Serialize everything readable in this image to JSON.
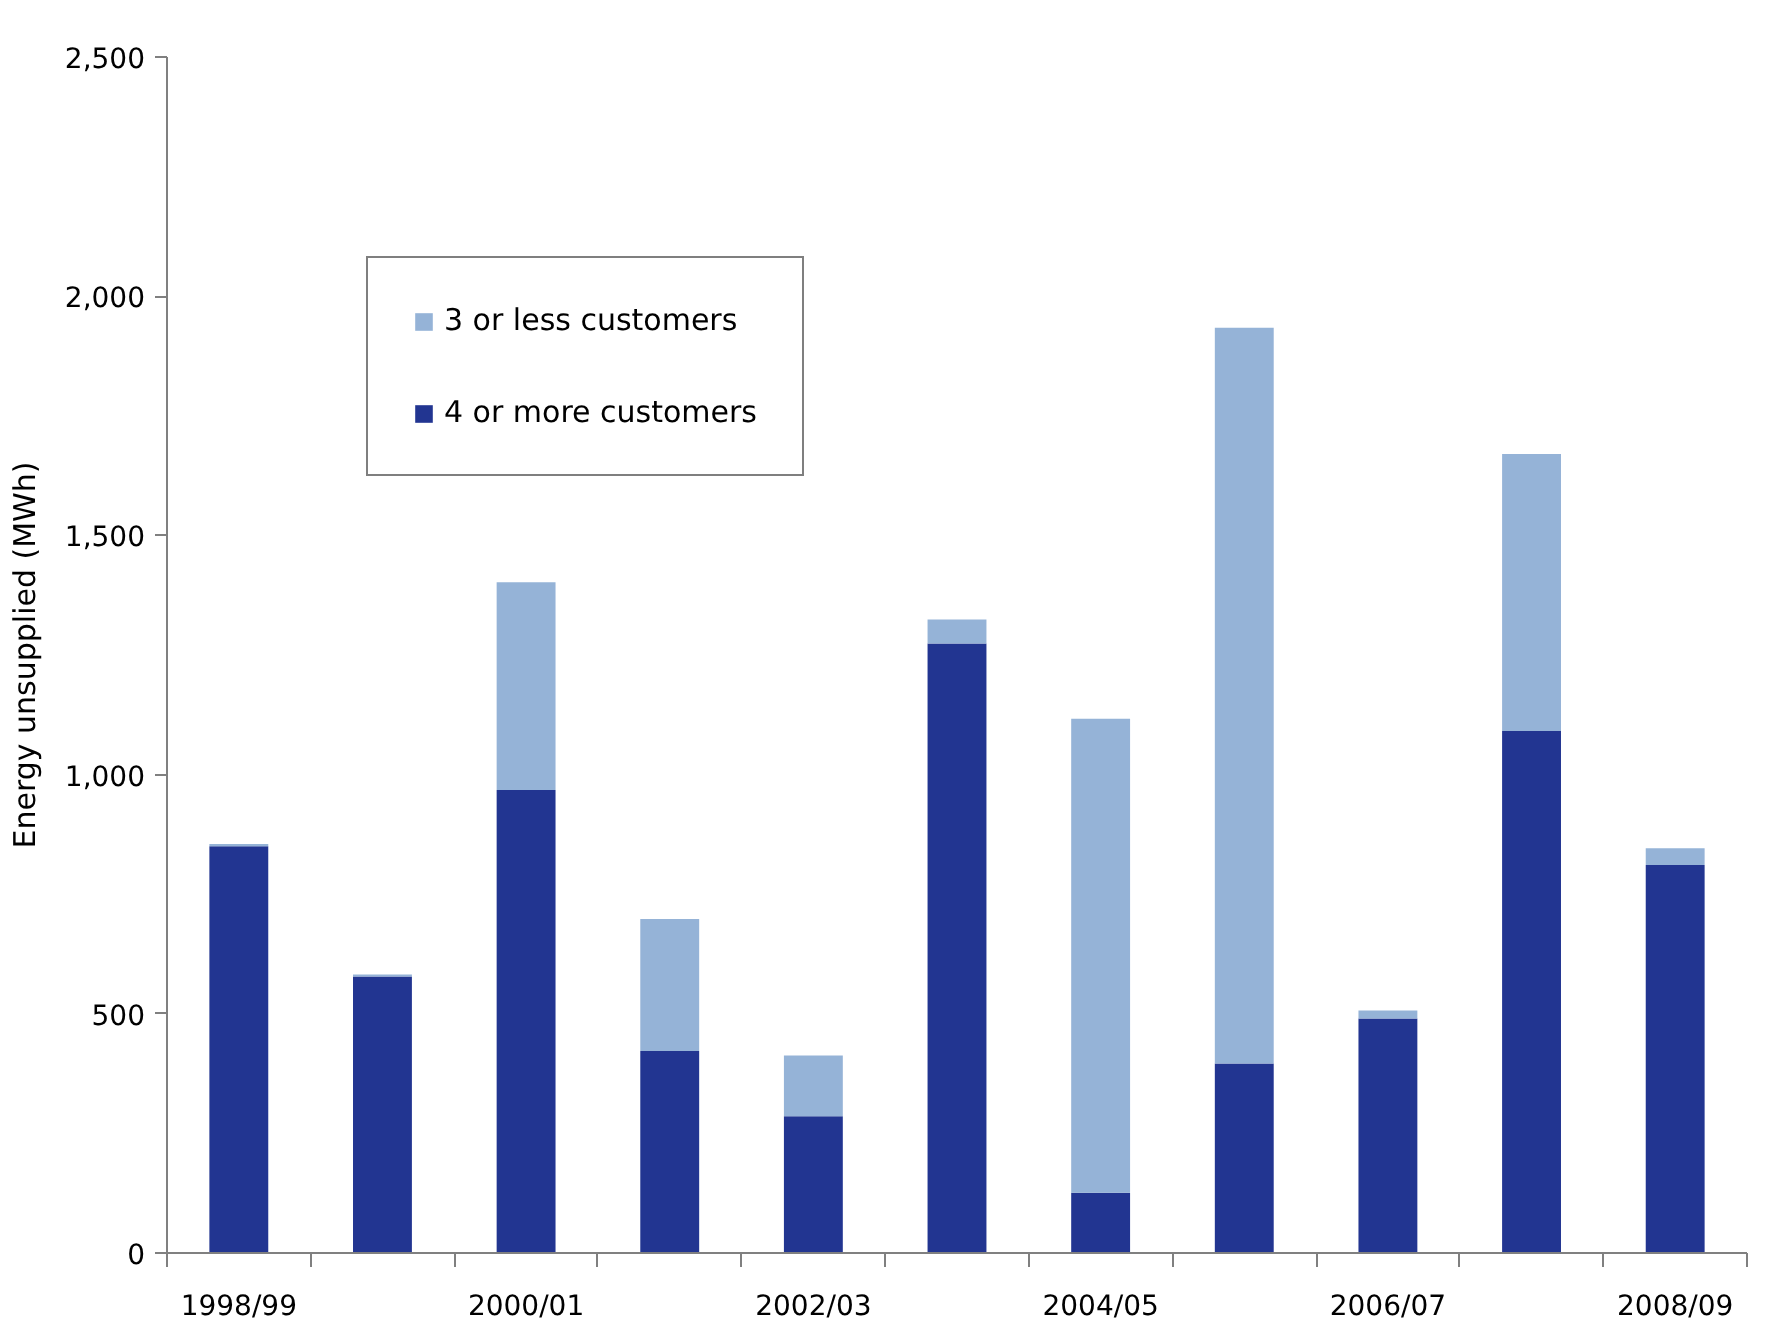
{
  "chart_data": {
    "type": "bar",
    "stacked": true,
    "ylabel": "Energy unsupplied (MWh)",
    "categories": [
      "1998/99",
      null,
      "2000/01",
      null,
      "2002/03",
      null,
      "2004/05",
      null,
      "2006/07",
      null,
      "2008/09"
    ],
    "series": [
      {
        "name": "4 or more customers",
        "color": "#223591",
        "values": [
          850,
          578,
          968,
          422,
          286,
          1274,
          126,
          396,
          490,
          1091,
          811
        ]
      },
      {
        "name": "3 or less customers",
        "color": "#95b3d7",
        "values": [
          5,
          4,
          434,
          276,
          127,
          50,
          991,
          1538,
          17,
          579,
          35
        ]
      }
    ],
    "ylim": [
      0,
      2500
    ],
    "yticks": [
      0,
      500,
      {
        "value": 1000,
        "label": "1,000"
      },
      {
        "value": 1500,
        "label": "1,500"
      },
      {
        "value": 2000,
        "label": "2,000"
      },
      {
        "value": 2500,
        "label": "2,500"
      }
    ],
    "legend": "top left"
  }
}
